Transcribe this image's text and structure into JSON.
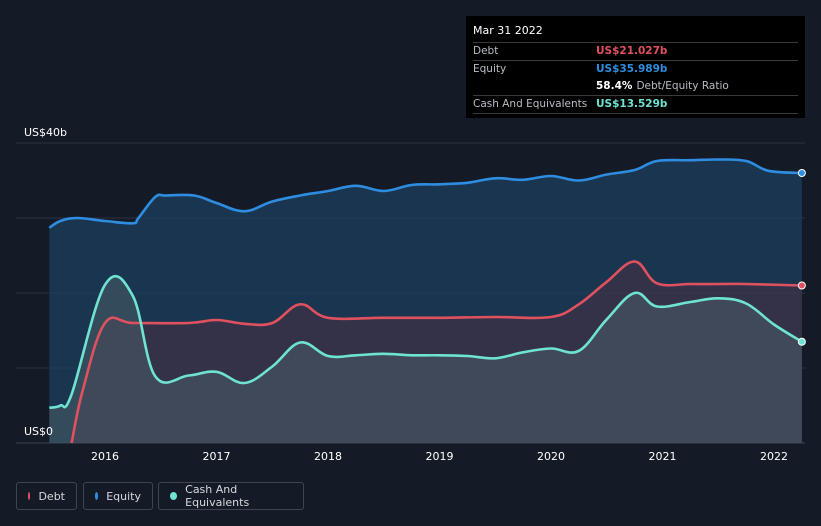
{
  "tooltip": {
    "date": "Mar 31 2022",
    "debt_label": "Debt",
    "debt_value": "US$21.027b",
    "equity_label": "Equity",
    "equity_value": "US$35.989b",
    "ratio_value": "58.4%",
    "ratio_label": "Debt/Equity Ratio",
    "cash_label": "Cash And Equivalents",
    "cash_value": "US$13.529b"
  },
  "legend": [
    {
      "label": "Debt",
      "color": "#e0515f"
    },
    {
      "label": "Equity",
      "color": "#2e8de0"
    },
    {
      "label": "Cash And Equivalents",
      "color": "#6fe3d2"
    }
  ],
  "colors": {
    "background": "#151b26",
    "debt": "#e0515f",
    "equity": "#2e8de0",
    "cash": "#6fe3d2",
    "grid": "#2a3140"
  },
  "chart_data": {
    "type": "area",
    "y_top_label": "US$40b",
    "y_bottom_label": "US$0",
    "ylim": [
      0,
      40
    ],
    "xlim": [
      2015.45,
      2022.25
    ],
    "x_ticks": [
      "2016",
      "2017",
      "2018",
      "2019",
      "2020",
      "2021",
      "2022"
    ],
    "grid": true,
    "legend_position": "bottom-left",
    "series": [
      {
        "name": "Equity",
        "points": [
          [
            2015.5,
            28.7
          ],
          [
            2015.6,
            29.6
          ],
          [
            2015.75,
            30
          ],
          [
            2016,
            29.6
          ],
          [
            2016.25,
            29.3
          ],
          [
            2016.3,
            30
          ],
          [
            2016.45,
            32.8
          ],
          [
            2016.55,
            33
          ],
          [
            2016.8,
            33
          ],
          [
            2017,
            32
          ],
          [
            2017.25,
            30.9
          ],
          [
            2017.5,
            32.2
          ],
          [
            2017.75,
            33
          ],
          [
            2018,
            33.6
          ],
          [
            2018.25,
            34.3
          ],
          [
            2018.5,
            33.6
          ],
          [
            2018.75,
            34.4
          ],
          [
            2019,
            34.5
          ],
          [
            2019.25,
            34.7
          ],
          [
            2019.5,
            35.3
          ],
          [
            2019.75,
            35.1
          ],
          [
            2020,
            35.6
          ],
          [
            2020.25,
            35
          ],
          [
            2020.5,
            35.8
          ],
          [
            2020.75,
            36.4
          ],
          [
            2020.95,
            37.6
          ],
          [
            2021.25,
            37.7
          ],
          [
            2021.5,
            37.8
          ],
          [
            2021.75,
            37.6
          ],
          [
            2021.95,
            36.3
          ],
          [
            2022.25,
            36
          ]
        ]
      },
      {
        "name": "Debt",
        "points": [
          [
            2015.7,
            0
          ],
          [
            2015.8,
            7
          ],
          [
            2016,
            16
          ],
          [
            2016.25,
            16
          ],
          [
            2016.75,
            16
          ],
          [
            2017,
            16.4
          ],
          [
            2017.25,
            15.9
          ],
          [
            2017.5,
            16
          ],
          [
            2017.75,
            18.5
          ],
          [
            2018,
            16.7
          ],
          [
            2018.5,
            16.7
          ],
          [
            2019,
            16.7
          ],
          [
            2019.5,
            16.8
          ],
          [
            2020,
            16.8
          ],
          [
            2020.25,
            18.5
          ],
          [
            2020.5,
            21.5
          ],
          [
            2020.75,
            24.2
          ],
          [
            2020.95,
            21.3
          ],
          [
            2021.25,
            21.2
          ],
          [
            2021.5,
            21.2
          ],
          [
            2021.75,
            21.2
          ],
          [
            2022.25,
            21.0
          ]
        ]
      },
      {
        "name": "Cash And Equivalents",
        "points": [
          [
            2015.5,
            4.7
          ],
          [
            2015.6,
            5
          ],
          [
            2015.7,
            6.5
          ],
          [
            2016,
            21.1
          ],
          [
            2016.25,
            19.6
          ],
          [
            2016.45,
            8.9
          ],
          [
            2016.75,
            9
          ],
          [
            2017,
            9.5
          ],
          [
            2017.25,
            8
          ],
          [
            2017.5,
            10.2
          ],
          [
            2017.75,
            13.4
          ],
          [
            2018,
            11.6
          ],
          [
            2018.25,
            11.7
          ],
          [
            2018.5,
            11.9
          ],
          [
            2018.75,
            11.7
          ],
          [
            2019,
            11.7
          ],
          [
            2019.25,
            11.6
          ],
          [
            2019.5,
            11.3
          ],
          [
            2019.75,
            12.1
          ],
          [
            2020,
            12.6
          ],
          [
            2020.25,
            12.3
          ],
          [
            2020.5,
            16.5
          ],
          [
            2020.75,
            20
          ],
          [
            2020.95,
            18.2
          ],
          [
            2021.25,
            18.8
          ],
          [
            2021.5,
            19.3
          ],
          [
            2021.75,
            18.6
          ],
          [
            2022,
            15.8
          ],
          [
            2022.25,
            13.5
          ]
        ]
      }
    ]
  }
}
